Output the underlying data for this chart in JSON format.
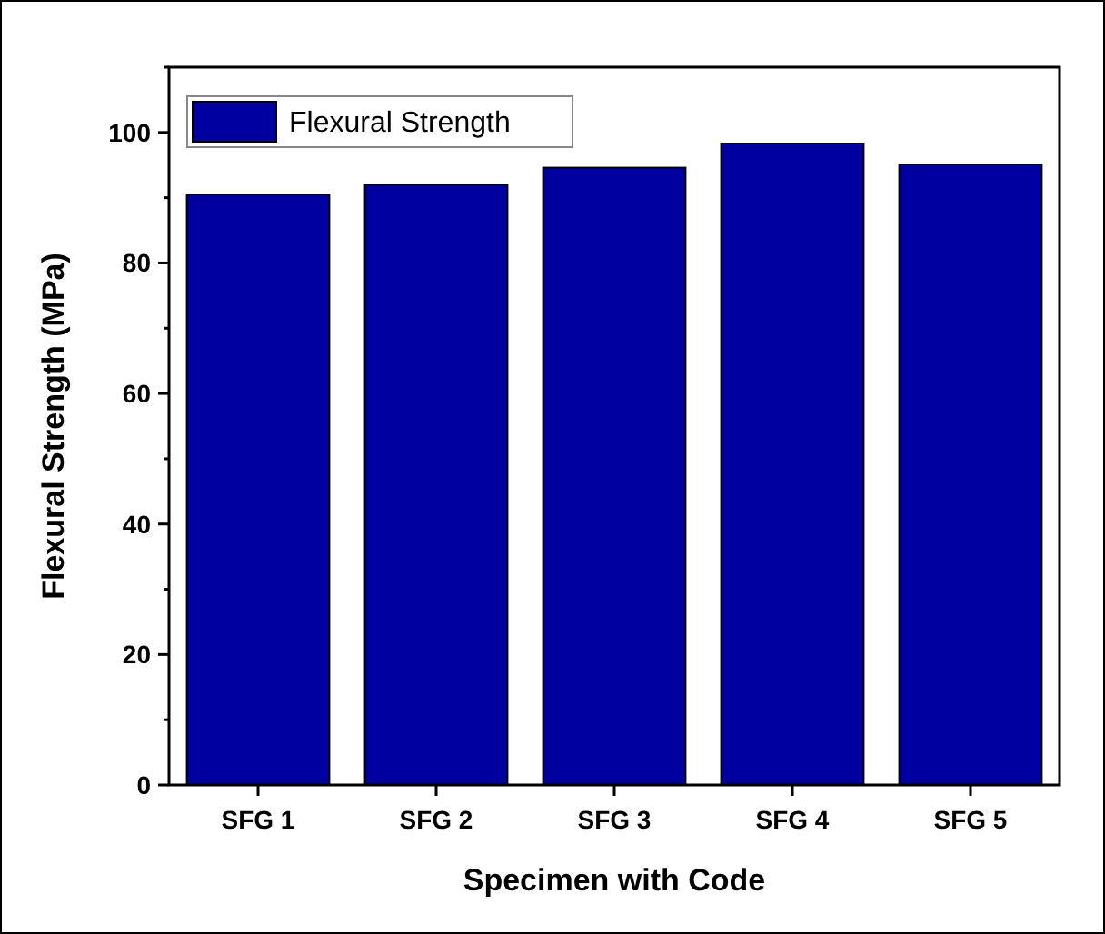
{
  "chart_data": {
    "type": "bar",
    "xlabel": "Specimen with Code",
    "ylabel": "Flexural Strength (MPa)",
    "categories": [
      "SFG 1",
      "SFG 2",
      "SFG 3",
      "SFG 4",
      "SFG 5"
    ],
    "series": [
      {
        "name": "Flexural Strength",
        "color": "#0000a0",
        "values": [
          90.5,
          92.0,
          94.6,
          98.3,
          95.1
        ]
      }
    ],
    "ylim": [
      0,
      110
    ],
    "yticks": [
      0,
      {
        "value": 10,
        "label": null
      },
      20,
      {
        "value": 30,
        "label": null
      },
      40,
      {
        "value": 50,
        "label": null
      },
      60,
      {
        "value": 70,
        "label": null
      },
      80,
      {
        "value": 90,
        "label": null
      },
      100,
      {
        "value": 110,
        "label": null
      }
    ],
    "grid": false,
    "legend": "top left"
  }
}
